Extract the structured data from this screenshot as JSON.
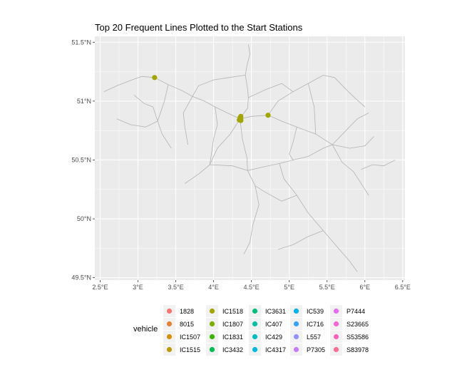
{
  "chart_data": {
    "type": "scatter",
    "title": "Top 20 Frequent Lines Plotted to the Start Stations",
    "xlabel": "",
    "ylabel": "",
    "x_ticks": [
      "2.5°E",
      "3°E",
      "3.5°E",
      "4°E",
      "4.5°E",
      "5°E",
      "5.5°E",
      "6°E",
      "6.5°E"
    ],
    "x_tick_values": [
      2.5,
      3.0,
      3.5,
      4.0,
      4.5,
      5.0,
      5.5,
      6.0,
      6.5
    ],
    "y_ticks": [
      "49.5°N",
      "50°N",
      "50.5°N",
      "51°N",
      "51.5°N"
    ],
    "y_tick_values": [
      49.5,
      50.0,
      50.5,
      51.0,
      51.5
    ],
    "xlim": [
      2.43,
      6.53
    ],
    "ylim": [
      49.48,
      51.55
    ],
    "grid": true,
    "background": "#ebebeb",
    "grid_color": "#ffffff",
    "network_line_color": "#b3b3b3",
    "legend": {
      "title": "vehicle",
      "position": "bottom",
      "entries": [
        {
          "name": "1828",
          "color": "#F8766D"
        },
        {
          "name": "8015",
          "color": "#EA8331"
        },
        {
          "name": "IC1507",
          "color": "#D89000"
        },
        {
          "name": "IC1515",
          "color": "#C09B00"
        },
        {
          "name": "IC1518",
          "color": "#A3A500"
        },
        {
          "name": "IC1807",
          "color": "#7CAE00"
        },
        {
          "name": "IC1831",
          "color": "#39B600"
        },
        {
          "name": "IC3432",
          "color": "#00BB4E"
        },
        {
          "name": "IC3631",
          "color": "#00BF7D"
        },
        {
          "name": "IC407",
          "color": "#00C1A3"
        },
        {
          "name": "IC429",
          "color": "#00BFC4"
        },
        {
          "name": "IC4317",
          "color": "#00BAE0"
        },
        {
          "name": "IC539",
          "color": "#00B0F6"
        },
        {
          "name": "IC716",
          "color": "#35A2FF"
        },
        {
          "name": "L557",
          "color": "#9590FF"
        },
        {
          "name": "P7305",
          "color": "#C77CFF"
        },
        {
          "name": "P7444",
          "color": "#E76BF3"
        },
        {
          "name": "S23665",
          "color": "#FA62DB"
        },
        {
          "name": "S53586",
          "color": "#FF62BC"
        },
        {
          "name": "S83978",
          "color": "#FF6C91"
        }
      ]
    },
    "points": [
      {
        "lon": 3.22,
        "lat": 51.2,
        "vehicle": "IC1518"
      },
      {
        "lon": 4.72,
        "lat": 50.88,
        "vehicle": "IC1518"
      },
      {
        "lon": 4.36,
        "lat": 50.87,
        "vehicle": "IC1518"
      },
      {
        "lon": 4.35,
        "lat": 50.86,
        "vehicle": "IC1518"
      },
      {
        "lon": 4.36,
        "lat": 50.85,
        "vehicle": "IC1518"
      },
      {
        "lon": 4.35,
        "lat": 50.845,
        "vehicle": "IC1518"
      },
      {
        "lon": 4.34,
        "lat": 50.84,
        "vehicle": "IC1518"
      },
      {
        "lon": 4.36,
        "lat": 50.835,
        "vehicle": "IC1518"
      }
    ]
  }
}
